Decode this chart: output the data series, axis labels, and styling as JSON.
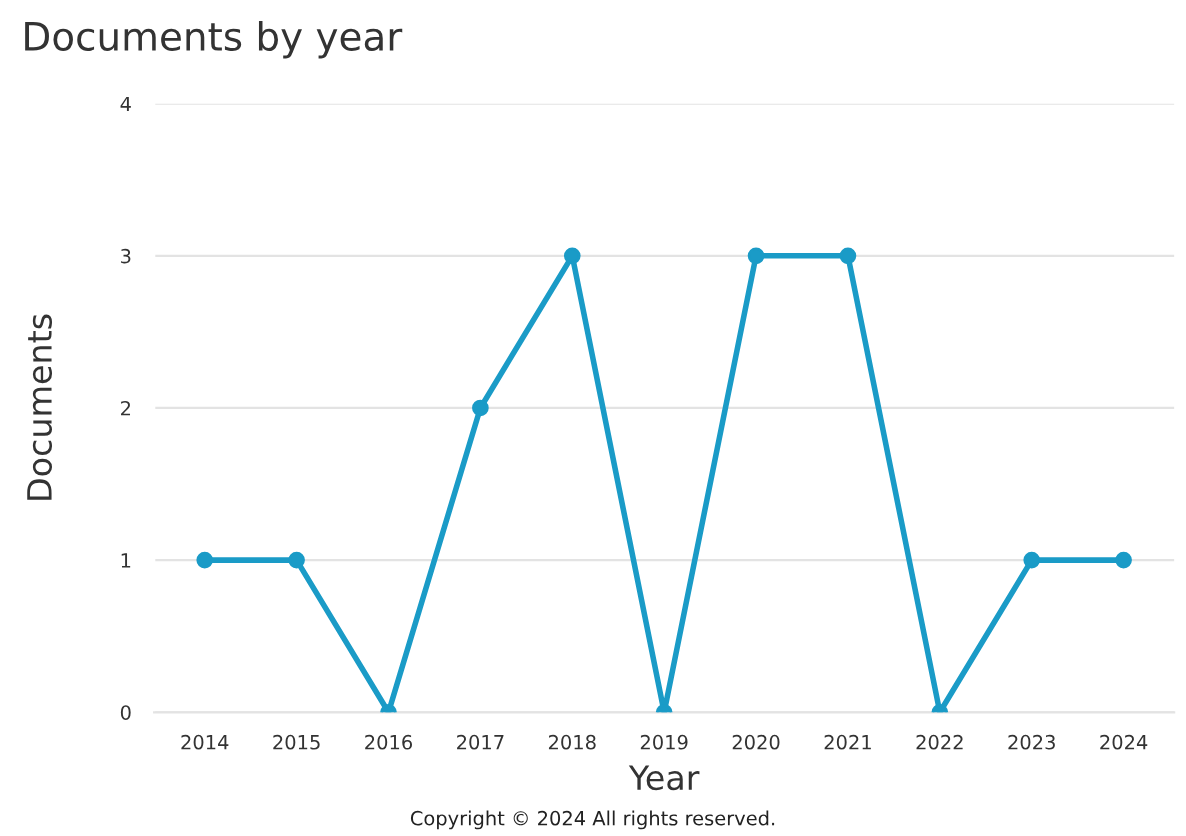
{
  "chart_data": {
    "type": "line",
    "title": "Documents by year",
    "xlabel": "Year",
    "ylabel": "Documents",
    "categories": [
      "2014",
      "2015",
      "2016",
      "2017",
      "2018",
      "2019",
      "2020",
      "2021",
      "2022",
      "2023",
      "2024"
    ],
    "series": [
      {
        "color": "#1a9bc7",
        "values": [
          1,
          1,
          0,
          2,
          3,
          0,
          3,
          3,
          0,
          1,
          1
        ]
      }
    ],
    "ylim": [
      0,
      4
    ],
    "yticks": [
      0,
      1,
      2,
      3,
      4
    ],
    "grid": "y",
    "marker": "circle",
    "line_style": "solid",
    "legend": false,
    "annotations": [
      "Copyright © 2024 All rights reserved."
    ]
  }
}
